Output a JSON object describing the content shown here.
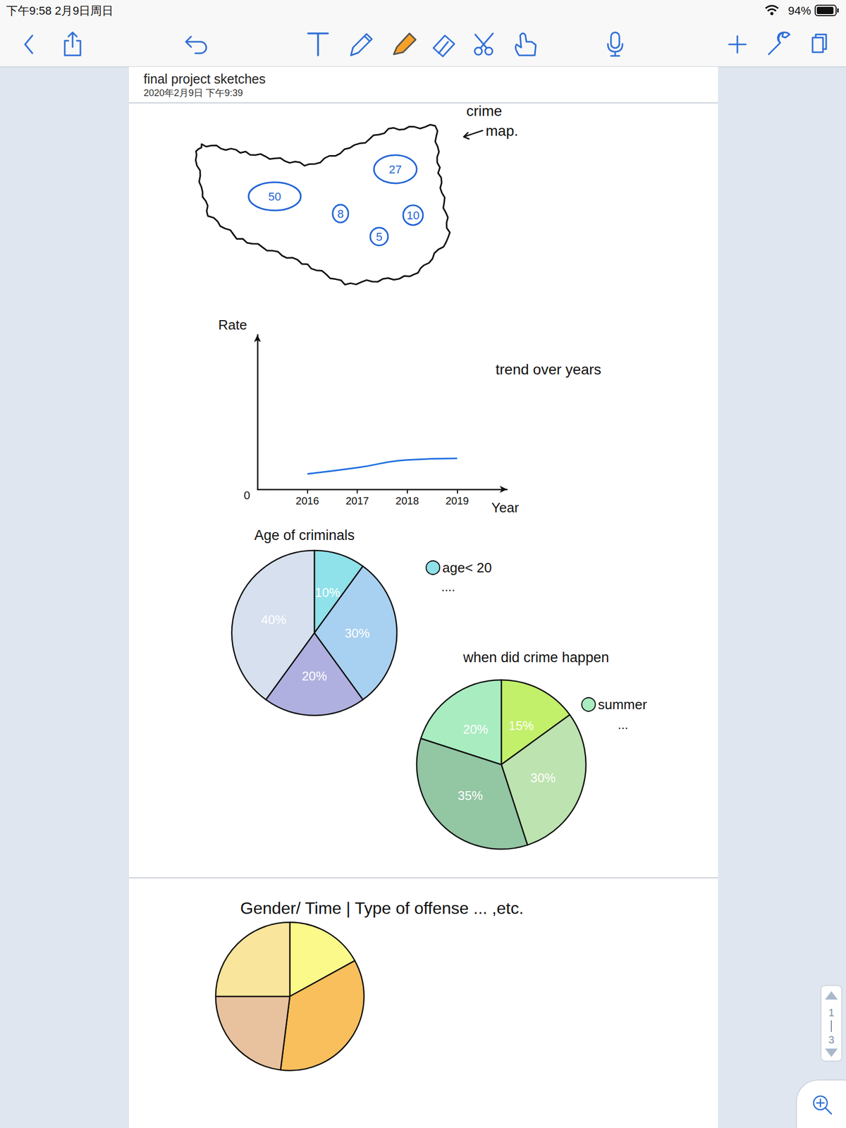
{
  "status_bar": {
    "time": "下午9:58",
    "date": "2月9日周日",
    "battery": "94%"
  },
  "note": {
    "title": "final project sketches",
    "timestamp": "2020年2月9日 下午9:39"
  },
  "crime_map": {
    "annotation": [
      "crime",
      "map."
    ],
    "counts": [
      50,
      27,
      8,
      10,
      5
    ]
  },
  "chart_data": [
    {
      "type": "line",
      "title": "trend over years",
      "xlabel": "Year",
      "ylabel": "Rate",
      "x": [
        2016,
        2017,
        2018,
        2019
      ],
      "values": [
        10,
        14,
        19,
        20
      ],
      "color": "#1f6fe0",
      "marker": "none",
      "xlim": [
        2015,
        2020
      ],
      "xticks": [
        2016,
        2017,
        2018,
        2019
      ],
      "ylim": [
        0,
        100
      ],
      "yticks": [
        0
      ],
      "grid": false
    },
    {
      "type": "pie",
      "title": "Age of criminals",
      "categories": [
        "age< 20",
        null,
        null,
        null
      ],
      "values": [
        10,
        30,
        20,
        40
      ],
      "value_labels": [
        "10%",
        "30%",
        "20%",
        "40%"
      ],
      "colors": [
        "#8fe1ea",
        "#a8d0f0",
        "#b0b0e0",
        "#d7e0ee"
      ],
      "data_labels": true,
      "legend": "right",
      "annotations": [
        "...."
      ]
    },
    {
      "type": "pie",
      "title": "when did crime happen",
      "categories": [
        null,
        null,
        null,
        "summer"
      ],
      "values": [
        15,
        30,
        35,
        20
      ],
      "value_labels": [
        "15%",
        "30%",
        "35%",
        "20%"
      ],
      "colors": [
        "#c2f06a",
        "#bde3b0",
        "#93c6a3",
        "#a8ecc0"
      ],
      "data_labels": true,
      "legend": "right",
      "annotations": [
        "..."
      ]
    },
    {
      "type": "pie",
      "title": "Gender/ Time | Type of offense ... ,etc.",
      "values": [
        17,
        35,
        23,
        25
      ],
      "colors": [
        "#fbf98a",
        "#f8bf5c",
        "#e8c29f",
        "#f9e59b"
      ],
      "data_labels": false
    }
  ],
  "page_indicator": {
    "page": 1,
    "pages": 3
  }
}
